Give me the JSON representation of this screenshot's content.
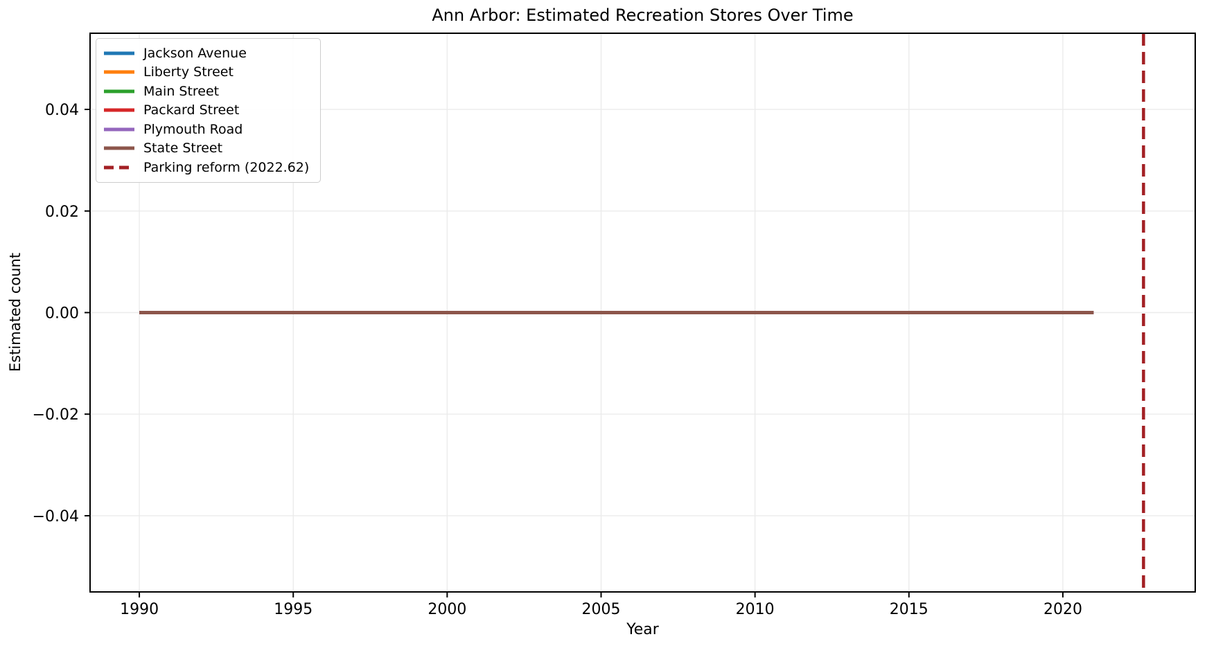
{
  "figure": {
    "background": "#ffffff"
  },
  "chart_data": {
    "type": "line",
    "title": "Ann Arbor: Estimated Recreation Stores Over Time",
    "xlabel": "Year",
    "ylabel": "Estimated count",
    "xlim": [
      1988.4,
      2024.3
    ],
    "ylim": [
      -0.055,
      0.055
    ],
    "xticks": [
      1990,
      1995,
      2000,
      2005,
      2010,
      2015,
      2020
    ],
    "xtick_labels": [
      "1990",
      "1995",
      "2000",
      "2005",
      "2010",
      "2015",
      "2020"
    ],
    "yticks": [
      0.04,
      0.02,
      0.0,
      -0.02,
      -0.04
    ],
    "ytick_labels": [
      "0.04",
      "0.02",
      "0.00",
      "−0.02",
      "−0.04"
    ],
    "grid": true,
    "grid_color": "#ebebeb",
    "spine_color": "#000000",
    "legend_position": "upper-left",
    "series": [
      {
        "name": "Jackson Avenue",
        "color": "#1f77b4",
        "dash": false,
        "x": [
          1990,
          2021
        ],
        "values": [
          0,
          0
        ]
      },
      {
        "name": "Liberty Street",
        "color": "#ff7f0e",
        "dash": false,
        "x": [
          1990,
          2021
        ],
        "values": [
          0,
          0
        ]
      },
      {
        "name": "Main Street",
        "color": "#2ca02c",
        "dash": false,
        "x": [
          1990,
          2021
        ],
        "values": [
          0,
          0
        ]
      },
      {
        "name": "Packard Street",
        "color": "#d62728",
        "dash": false,
        "x": [
          1990,
          2021
        ],
        "values": [
          0,
          0
        ]
      },
      {
        "name": "Plymouth Road",
        "color": "#9467bd",
        "dash": false,
        "x": [
          1990,
          2021
        ],
        "values": [
          0,
          0
        ]
      },
      {
        "name": "State Street",
        "color": "#8c564b",
        "dash": false,
        "x": [
          1990,
          2021
        ],
        "values": [
          0,
          0
        ]
      }
    ],
    "annotations": [
      {
        "type": "vline",
        "x": 2022.62,
        "label": "Parking reform (2022.62)",
        "color": "#a32024",
        "dash": true
      }
    ],
    "legend": {
      "entries": [
        {
          "label": "Jackson Avenue",
          "color": "#1f77b4",
          "dash": false
        },
        {
          "label": "Liberty Street",
          "color": "#ff7f0e",
          "dash": false
        },
        {
          "label": "Main Street",
          "color": "#2ca02c",
          "dash": false
        },
        {
          "label": "Packard Street",
          "color": "#d62728",
          "dash": false
        },
        {
          "label": "Plymouth Road",
          "color": "#9467bd",
          "dash": false
        },
        {
          "label": "State Street",
          "color": "#8c564b",
          "dash": false
        },
        {
          "label": "Parking reform (2022.62)",
          "color": "#a32024",
          "dash": true
        }
      ]
    }
  }
}
